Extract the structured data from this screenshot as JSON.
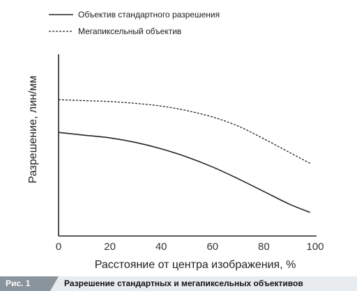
{
  "chart_data": {
    "type": "line",
    "title": "",
    "xlabel": "Расстояние от центра изображения, %",
    "ylabel": "Разрешение, лин/мм",
    "xlim": [
      0,
      100
    ],
    "ylim": [
      0,
      100
    ],
    "x_ticks": [
      "0",
      "20",
      "40",
      "60",
      "80",
      "100"
    ],
    "grid": false,
    "legend_position": "top-left",
    "series": [
      {
        "name": "Объектив стандартного разрешения",
        "style": "solid",
        "color": "#222222",
        "x": [
          0,
          10,
          20,
          30,
          40,
          50,
          60,
          70,
          80,
          90,
          98
        ],
        "y": [
          57,
          55.5,
          54,
          51.5,
          48,
          43.5,
          38,
          31.5,
          24.5,
          17.5,
          13
        ]
      },
      {
        "name": "Мегапиксельный объектив",
        "style": "dashed",
        "color": "#222222",
        "x": [
          0,
          10,
          20,
          30,
          40,
          50,
          60,
          70,
          80,
          90,
          98
        ],
        "y": [
          75,
          74.5,
          74,
          73,
          71.5,
          69,
          65.5,
          60.5,
          53.5,
          46,
          40
        ]
      }
    ]
  },
  "caption": {
    "tag": "Рис. 1",
    "text": "Разрешение стандартных и мегапиксельных объективов",
    "tag_color": "#8a949c"
  }
}
